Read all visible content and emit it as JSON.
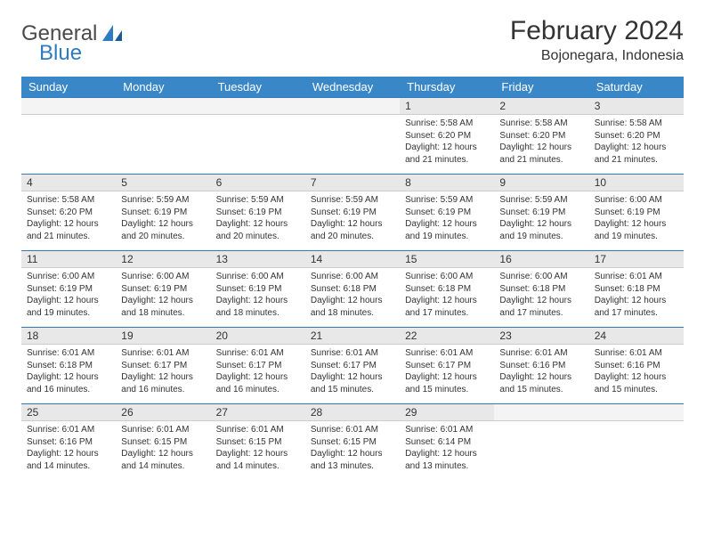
{
  "logo": {
    "text1": "General",
    "text2": "Blue"
  },
  "title": "February 2024",
  "location": "Bojonegara, Indonesia",
  "colors": {
    "header_bg": "#3a87c8",
    "header_text": "#ffffff",
    "daynum_bg": "#e8e8e8",
    "daynum_border_top": "#2f7bbf",
    "text": "#333333",
    "logo_blue": "#2f7bbf"
  },
  "fonts": {
    "title_size": 30,
    "location_size": 16,
    "header_size": 13,
    "daynum_size": 12,
    "body_size": 10
  },
  "day_headers": [
    "Sunday",
    "Monday",
    "Tuesday",
    "Wednesday",
    "Thursday",
    "Friday",
    "Saturday"
  ],
  "weeks": [
    [
      {
        "n": "",
        "sr": "",
        "ss": "",
        "dl": ""
      },
      {
        "n": "",
        "sr": "",
        "ss": "",
        "dl": ""
      },
      {
        "n": "",
        "sr": "",
        "ss": "",
        "dl": ""
      },
      {
        "n": "",
        "sr": "",
        "ss": "",
        "dl": ""
      },
      {
        "n": "1",
        "sr": "Sunrise: 5:58 AM",
        "ss": "Sunset: 6:20 PM",
        "dl": "Daylight: 12 hours and 21 minutes."
      },
      {
        "n": "2",
        "sr": "Sunrise: 5:58 AM",
        "ss": "Sunset: 6:20 PM",
        "dl": "Daylight: 12 hours and 21 minutes."
      },
      {
        "n": "3",
        "sr": "Sunrise: 5:58 AM",
        "ss": "Sunset: 6:20 PM",
        "dl": "Daylight: 12 hours and 21 minutes."
      }
    ],
    [
      {
        "n": "4",
        "sr": "Sunrise: 5:58 AM",
        "ss": "Sunset: 6:20 PM",
        "dl": "Daylight: 12 hours and 21 minutes."
      },
      {
        "n": "5",
        "sr": "Sunrise: 5:59 AM",
        "ss": "Sunset: 6:19 PM",
        "dl": "Daylight: 12 hours and 20 minutes."
      },
      {
        "n": "6",
        "sr": "Sunrise: 5:59 AM",
        "ss": "Sunset: 6:19 PM",
        "dl": "Daylight: 12 hours and 20 minutes."
      },
      {
        "n": "7",
        "sr": "Sunrise: 5:59 AM",
        "ss": "Sunset: 6:19 PM",
        "dl": "Daylight: 12 hours and 20 minutes."
      },
      {
        "n": "8",
        "sr": "Sunrise: 5:59 AM",
        "ss": "Sunset: 6:19 PM",
        "dl": "Daylight: 12 hours and 19 minutes."
      },
      {
        "n": "9",
        "sr": "Sunrise: 5:59 AM",
        "ss": "Sunset: 6:19 PM",
        "dl": "Daylight: 12 hours and 19 minutes."
      },
      {
        "n": "10",
        "sr": "Sunrise: 6:00 AM",
        "ss": "Sunset: 6:19 PM",
        "dl": "Daylight: 12 hours and 19 minutes."
      }
    ],
    [
      {
        "n": "11",
        "sr": "Sunrise: 6:00 AM",
        "ss": "Sunset: 6:19 PM",
        "dl": "Daylight: 12 hours and 19 minutes."
      },
      {
        "n": "12",
        "sr": "Sunrise: 6:00 AM",
        "ss": "Sunset: 6:19 PM",
        "dl": "Daylight: 12 hours and 18 minutes."
      },
      {
        "n": "13",
        "sr": "Sunrise: 6:00 AM",
        "ss": "Sunset: 6:19 PM",
        "dl": "Daylight: 12 hours and 18 minutes."
      },
      {
        "n": "14",
        "sr": "Sunrise: 6:00 AM",
        "ss": "Sunset: 6:18 PM",
        "dl": "Daylight: 12 hours and 18 minutes."
      },
      {
        "n": "15",
        "sr": "Sunrise: 6:00 AM",
        "ss": "Sunset: 6:18 PM",
        "dl": "Daylight: 12 hours and 17 minutes."
      },
      {
        "n": "16",
        "sr": "Sunrise: 6:00 AM",
        "ss": "Sunset: 6:18 PM",
        "dl": "Daylight: 12 hours and 17 minutes."
      },
      {
        "n": "17",
        "sr": "Sunrise: 6:01 AM",
        "ss": "Sunset: 6:18 PM",
        "dl": "Daylight: 12 hours and 17 minutes."
      }
    ],
    [
      {
        "n": "18",
        "sr": "Sunrise: 6:01 AM",
        "ss": "Sunset: 6:18 PM",
        "dl": "Daylight: 12 hours and 16 minutes."
      },
      {
        "n": "19",
        "sr": "Sunrise: 6:01 AM",
        "ss": "Sunset: 6:17 PM",
        "dl": "Daylight: 12 hours and 16 minutes."
      },
      {
        "n": "20",
        "sr": "Sunrise: 6:01 AM",
        "ss": "Sunset: 6:17 PM",
        "dl": "Daylight: 12 hours and 16 minutes."
      },
      {
        "n": "21",
        "sr": "Sunrise: 6:01 AM",
        "ss": "Sunset: 6:17 PM",
        "dl": "Daylight: 12 hours and 15 minutes."
      },
      {
        "n": "22",
        "sr": "Sunrise: 6:01 AM",
        "ss": "Sunset: 6:17 PM",
        "dl": "Daylight: 12 hours and 15 minutes."
      },
      {
        "n": "23",
        "sr": "Sunrise: 6:01 AM",
        "ss": "Sunset: 6:16 PM",
        "dl": "Daylight: 12 hours and 15 minutes."
      },
      {
        "n": "24",
        "sr": "Sunrise: 6:01 AM",
        "ss": "Sunset: 6:16 PM",
        "dl": "Daylight: 12 hours and 15 minutes."
      }
    ],
    [
      {
        "n": "25",
        "sr": "Sunrise: 6:01 AM",
        "ss": "Sunset: 6:16 PM",
        "dl": "Daylight: 12 hours and 14 minutes."
      },
      {
        "n": "26",
        "sr": "Sunrise: 6:01 AM",
        "ss": "Sunset: 6:15 PM",
        "dl": "Daylight: 12 hours and 14 minutes."
      },
      {
        "n": "27",
        "sr": "Sunrise: 6:01 AM",
        "ss": "Sunset: 6:15 PM",
        "dl": "Daylight: 12 hours and 14 minutes."
      },
      {
        "n": "28",
        "sr": "Sunrise: 6:01 AM",
        "ss": "Sunset: 6:15 PM",
        "dl": "Daylight: 12 hours and 13 minutes."
      },
      {
        "n": "29",
        "sr": "Sunrise: 6:01 AM",
        "ss": "Sunset: 6:14 PM",
        "dl": "Daylight: 12 hours and 13 minutes."
      },
      {
        "n": "",
        "sr": "",
        "ss": "",
        "dl": ""
      },
      {
        "n": "",
        "sr": "",
        "ss": "",
        "dl": ""
      }
    ]
  ]
}
